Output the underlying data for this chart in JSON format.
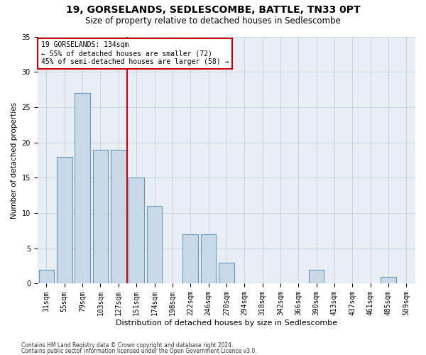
{
  "title": "19, GORSELANDS, SEDLESCOMBE, BATTLE, TN33 0PT",
  "subtitle": "Size of property relative to detached houses in Sedlescombe",
  "xlabel": "Distribution of detached houses by size in Sedlescombe",
  "ylabel": "Number of detached properties",
  "categories": [
    "31sqm",
    "55sqm",
    "79sqm",
    "103sqm",
    "127sqm",
    "151sqm",
    "174sqm",
    "198sqm",
    "222sqm",
    "246sqm",
    "270sqm",
    "294sqm",
    "318sqm",
    "342sqm",
    "366sqm",
    "390sqm",
    "413sqm",
    "437sqm",
    "461sqm",
    "485sqm",
    "509sqm"
  ],
  "values": [
    2,
    18,
    27,
    19,
    19,
    15,
    11,
    0,
    7,
    7,
    3,
    0,
    0,
    0,
    0,
    2,
    0,
    0,
    0,
    1,
    0
  ],
  "bar_color": "#c9d9e8",
  "bar_edge_color": "#6699bb",
  "vline_color": "#cc0000",
  "annotation_text": "19 GORSELANDS: 134sqm\n← 55% of detached houses are smaller (72)\n45% of semi-detached houses are larger (58) →",
  "annotation_box_color": "#ffffff",
  "annotation_box_edge": "#cc0000",
  "ylim": [
    0,
    35
  ],
  "yticks": [
    0,
    5,
    10,
    15,
    20,
    25,
    30,
    35
  ],
  "background_color": "#e8eef4",
  "footer_line1": "Contains HM Land Registry data © Crown copyright and database right 2024.",
  "footer_line2": "Contains public sector information licensed under the Open Government Licence v3.0.",
  "title_fontsize": 10,
  "subtitle_fontsize": 8.5,
  "xlabel_fontsize": 8,
  "ylabel_fontsize": 7.5,
  "tick_fontsize": 7,
  "annotation_fontsize": 7,
  "footer_fontsize": 5.5
}
